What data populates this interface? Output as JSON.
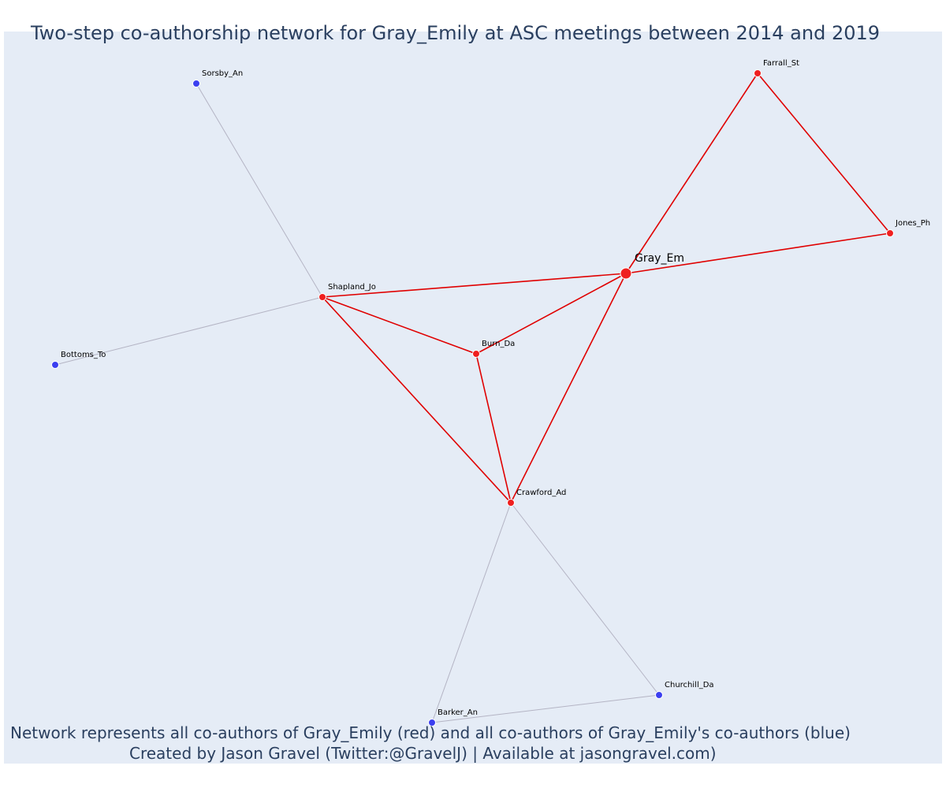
{
  "title": "Two-step co-authorship network for Gray_Emily at ASC meetings between 2014 and 2019",
  "caption_line_1": "Network represents all co-authors of Gray_Emily (red) and all co-authors of Gray_Emily's co-authors (blue)",
  "caption_line_2": "Created by Jason Gravel (Twitter:@GravelJ) | Available at jasongravel.com)",
  "colors": {
    "background": "#e5ecf6",
    "first_degree": "#ef1f1f",
    "second_degree": "#3b3ff0",
    "first_degree_edge": "#e00000",
    "second_degree_edge": "#b4b4c4",
    "text": "#2a3f5f"
  },
  "nodes": [
    {
      "id": "Gray_Em",
      "label": "Gray_Em",
      "group": "ego"
    },
    {
      "id": "Farrall_St",
      "label": "Farrall_St",
      "group": "co-author"
    },
    {
      "id": "Jones_Ph",
      "label": "Jones_Ph",
      "group": "co-author"
    },
    {
      "id": "Shapland_Jo",
      "label": "Shapland_Jo",
      "group": "co-author"
    },
    {
      "id": "Burn_Da",
      "label": "Burn_Da",
      "group": "co-author"
    },
    {
      "id": "Crawford_Ad",
      "label": "Crawford_Ad",
      "group": "co-author"
    },
    {
      "id": "Sorsby_An",
      "label": "Sorsby_An",
      "group": "second-degree"
    },
    {
      "id": "Bottoms_To",
      "label": "Bottoms_To",
      "group": "second-degree"
    },
    {
      "id": "Churchill_Da",
      "label": "Churchill_Da",
      "group": "second-degree"
    },
    {
      "id": "Barker_An",
      "label": "Barker_An",
      "group": "second-degree"
    }
  ],
  "edges": [
    {
      "source": "Gray_Em",
      "target": "Farrall_St",
      "group": "first"
    },
    {
      "source": "Gray_Em",
      "target": "Jones_Ph",
      "group": "first"
    },
    {
      "source": "Farrall_St",
      "target": "Jones_Ph",
      "group": "first"
    },
    {
      "source": "Gray_Em",
      "target": "Shapland_Jo",
      "group": "first"
    },
    {
      "source": "Gray_Em",
      "target": "Burn_Da",
      "group": "first"
    },
    {
      "source": "Gray_Em",
      "target": "Crawford_Ad",
      "group": "first"
    },
    {
      "source": "Shapland_Jo",
      "target": "Burn_Da",
      "group": "first"
    },
    {
      "source": "Shapland_Jo",
      "target": "Crawford_Ad",
      "group": "first"
    },
    {
      "source": "Burn_Da",
      "target": "Crawford_Ad",
      "group": "first"
    },
    {
      "source": "Shapland_Jo",
      "target": "Sorsby_An",
      "group": "second"
    },
    {
      "source": "Shapland_Jo",
      "target": "Bottoms_To",
      "group": "second"
    },
    {
      "source": "Crawford_Ad",
      "target": "Barker_An",
      "group": "second"
    },
    {
      "source": "Crawford_Ad",
      "target": "Churchill_Da",
      "group": "second"
    },
    {
      "source": "Barker_An",
      "target": "Churchill_Da",
      "group": "second"
    }
  ]
}
